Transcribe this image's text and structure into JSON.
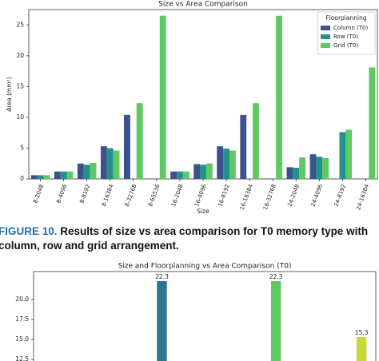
{
  "chart_data": [
    {
      "type": "grouped_bar",
      "title": "Size vs Area Comparison",
      "ylabel": "Area (mm²)",
      "xlabel": "Size",
      "categories": [
        "8-2048",
        "8-4096",
        "8-8192",
        "8-16384",
        "8-32768",
        "8-65536",
        "16-2048",
        "16-4096",
        "16-8192",
        "16-16384",
        "16-32768",
        "24-2048",
        "24-4096",
        "24-8192",
        "24-16384"
      ],
      "series": [
        {
          "name": "Column (T0)",
          "color": "#3b528b",
          "values": [
            0.6,
            1.2,
            2.5,
            5.3,
            10.4,
            null,
            1.2,
            2.4,
            5.3,
            10.4,
            null,
            1.9,
            4.0,
            null,
            null
          ]
        },
        {
          "name": "Row (T0)",
          "color": "#21918c",
          "values": [
            0.6,
            1.2,
            2.3,
            5.0,
            null,
            null,
            1.2,
            2.3,
            4.9,
            null,
            null,
            1.8,
            3.6,
            7.6,
            null
          ]
        },
        {
          "name": "Grid (T0)",
          "color": "#5ec962",
          "values": [
            0.6,
            1.2,
            2.6,
            4.6,
            12.3,
            26.5,
            1.2,
            2.5,
            4.6,
            12.3,
            26.5,
            3.5,
            3.4,
            8.0,
            18.1
          ]
        }
      ],
      "ylim": [
        0,
        27.5
      ],
      "yticks": [
        0,
        5,
        10,
        15,
        20,
        25
      ],
      "legend_title": "Floorplanning",
      "legend": "upper right"
    },
    {
      "type": "bar",
      "title": "Size and Floorplanning vs Area Comparison (T0)",
      "categories": [
        null,
        null,
        null,
        null,
        null,
        null,
        null,
        null,
        null,
        null,
        null,
        null
      ],
      "values": [
        null,
        null,
        null,
        null,
        22.3,
        null,
        null,
        null,
        22.3,
        null,
        null,
        15.3
      ],
      "colors": [
        null,
        null,
        null,
        null,
        "#2a788e",
        null,
        null,
        null,
        "#5ec962",
        null,
        null,
        "#c8d93a"
      ],
      "ylim": [
        11.5,
        23.5
      ],
      "yticks": [
        {
          "value": 12.5,
          "label": "12.5"
        },
        {
          "value": 15,
          "label": "15.0"
        },
        {
          "value": 17.5,
          "label": "17.5"
        },
        {
          "value": 20,
          "label": "20.0"
        }
      ]
    }
  ],
  "caption": {
    "label": "FIGURE 10.",
    "text": "Results of size vs area comparison for T0 memory type with",
    "text2": "column, row and grid arrangement."
  }
}
